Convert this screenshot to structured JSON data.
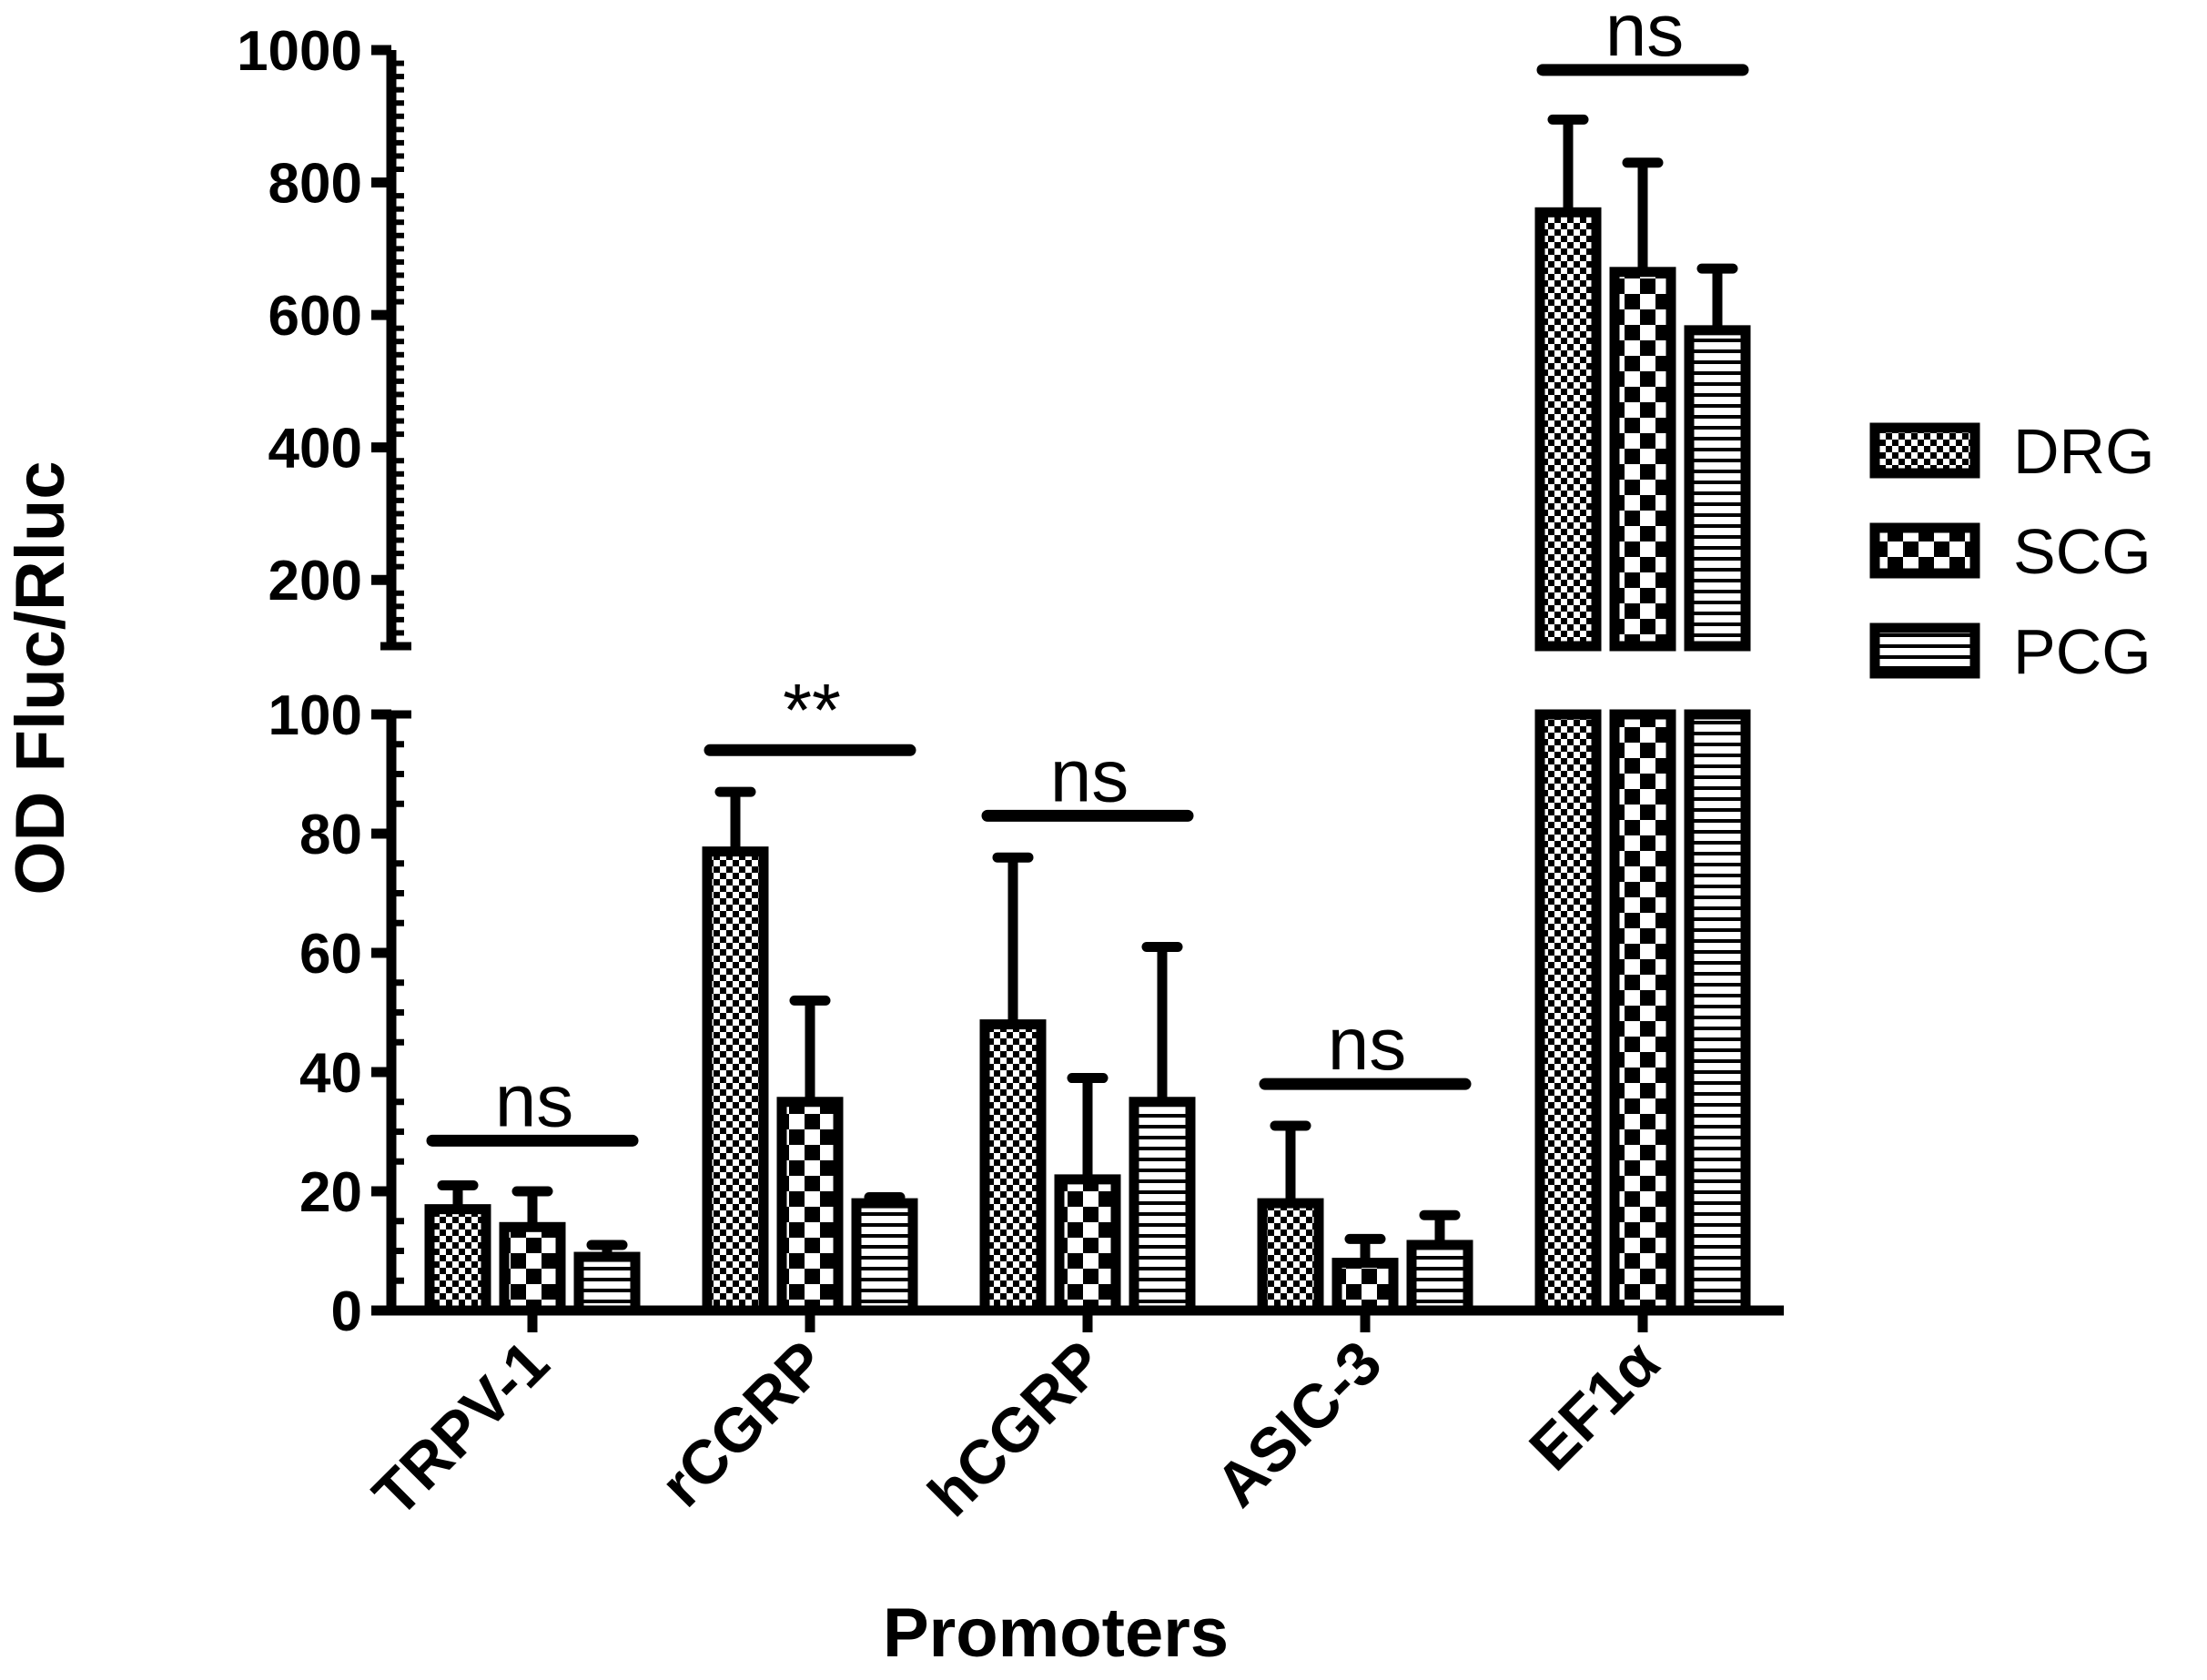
{
  "chart_data": {
    "type": "bar",
    "xlabel": "Promoters",
    "ylabel": "OD Fluc/Rluc",
    "categories": [
      "TRPV-1",
      "rCGRP",
      "hCGRP",
      "ASIC-3",
      "EF1α"
    ],
    "series": [
      {
        "name": "DRG",
        "pattern": "fine-checker",
        "values": [
          17,
          77,
          48,
          18,
          755
        ],
        "errors": [
          4,
          10,
          28,
          13,
          140
        ]
      },
      {
        "name": "SCG",
        "pattern": "coarse-checker",
        "values": [
          14,
          35,
          22,
          8,
          665
        ],
        "errors": [
          6,
          17,
          17,
          4,
          165
        ]
      },
      {
        "name": "PCG",
        "pattern": "horizontal-stripes",
        "values": [
          9,
          18,
          35,
          11,
          577
        ],
        "errors": [
          2,
          1,
          26,
          5,
          93
        ]
      }
    ],
    "y_axis_broken": true,
    "y_lower_segment": {
      "ylim": [
        0,
        100
      ],
      "ticks": [
        0,
        20,
        40,
        60,
        80,
        100
      ],
      "minor_step": 5
    },
    "y_upper_segment": {
      "ylim": [
        100,
        1000
      ],
      "ticks": [
        200,
        400,
        600,
        800,
        1000
      ],
      "minor_step": 20
    },
    "significance": [
      {
        "category": "TRPV-1",
        "label": "ns",
        "y": 28.5
      },
      {
        "category": "rCGRP",
        "label": "**",
        "y": 94
      },
      {
        "category": "hCGRP",
        "label": "ns",
        "y": 83
      },
      {
        "category": "ASIC-3",
        "label": "ns",
        "y": 38
      },
      {
        "category": "EF1α",
        "label": "ns",
        "y": 970
      }
    ],
    "legend_position": "right",
    "grid": false,
    "colors": {
      "stroke": "#000000",
      "background": "#ffffff"
    }
  }
}
